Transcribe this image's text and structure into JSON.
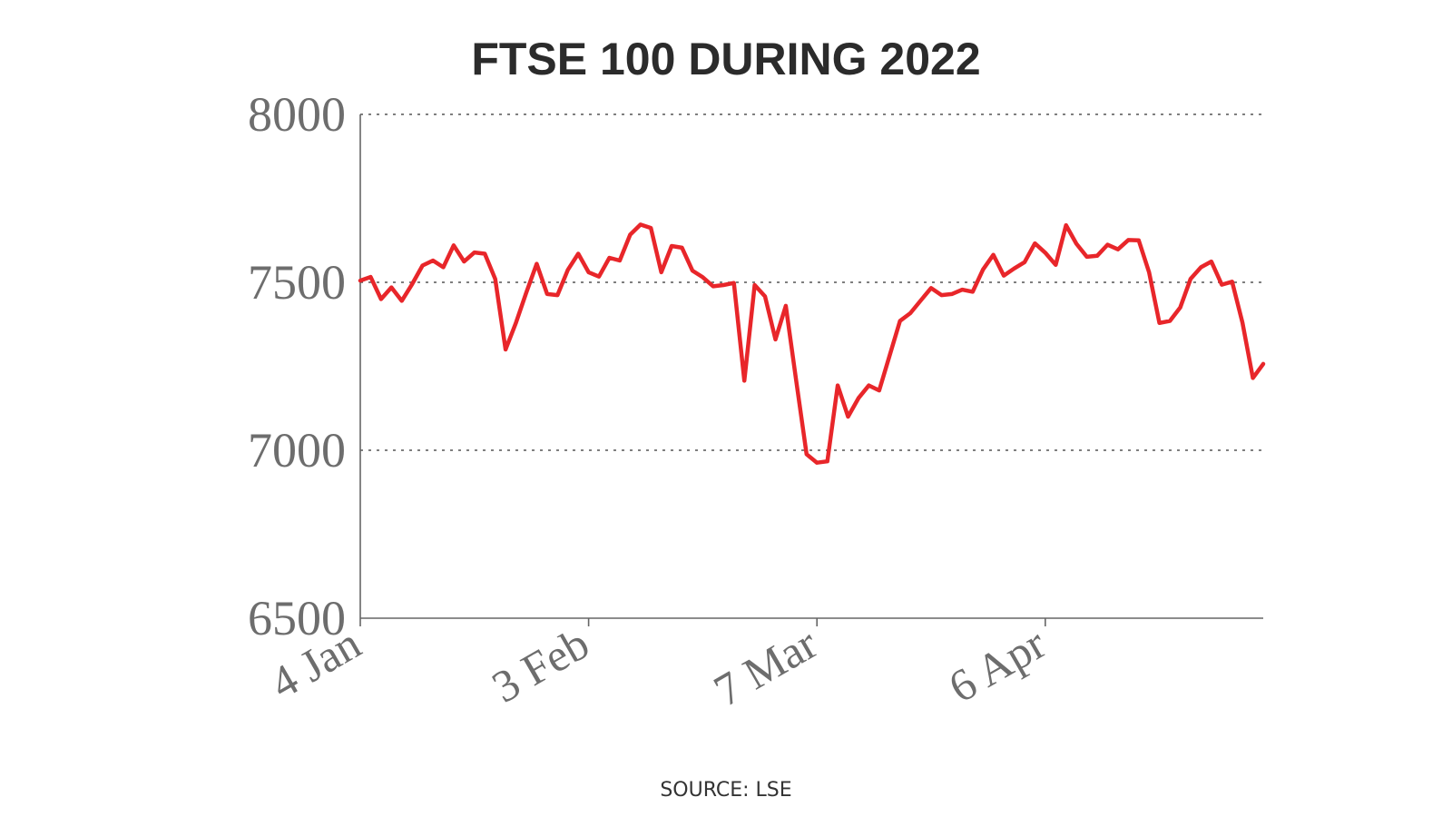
{
  "source": "SOURCE: LSE",
  "chart_data": {
    "type": "line",
    "title": "FTSE 100 DURING 2022",
    "xlabel": "",
    "ylabel": "",
    "ylim": [
      6500,
      8000
    ],
    "yticks": [
      6500,
      7000,
      7500,
      8000
    ],
    "xticks": [
      {
        "label": "4 Jan",
        "index": 0
      },
      {
        "label": "3 Feb",
        "index": 22
      },
      {
        "label": "7 Mar",
        "index": 44
      },
      {
        "label": "6 Apr",
        "index": 66
      }
    ],
    "grid": "horizontal dotted at 7000, 7500, 8000",
    "line_color": "#e8262a",
    "series": [
      {
        "values": [
          7505,
          7516,
          7450,
          7485,
          7445,
          7495,
          7550,
          7565,
          7545,
          7610,
          7562,
          7589,
          7585,
          7510,
          7300,
          7380,
          7470,
          7555,
          7465,
          7462,
          7537,
          7585,
          7530,
          7517,
          7573,
          7565,
          7642,
          7672,
          7662,
          7530,
          7608,
          7603,
          7535,
          7515,
          7488,
          7492,
          7498,
          7207,
          7492,
          7458,
          7330,
          7430,
          7208,
          6988,
          6963,
          6967,
          7193,
          7100,
          7155,
          7193,
          7178,
          7282,
          7385,
          7408,
          7446,
          7483,
          7462,
          7465,
          7478,
          7472,
          7538,
          7582,
          7520,
          7541,
          7560,
          7616,
          7588,
          7552,
          7670,
          7615,
          7576,
          7579,
          7612,
          7598,
          7626,
          7625,
          7530,
          7379,
          7385,
          7425,
          7510,
          7545,
          7562,
          7493,
          7502,
          7380,
          7215,
          7257
        ]
      }
    ]
  }
}
